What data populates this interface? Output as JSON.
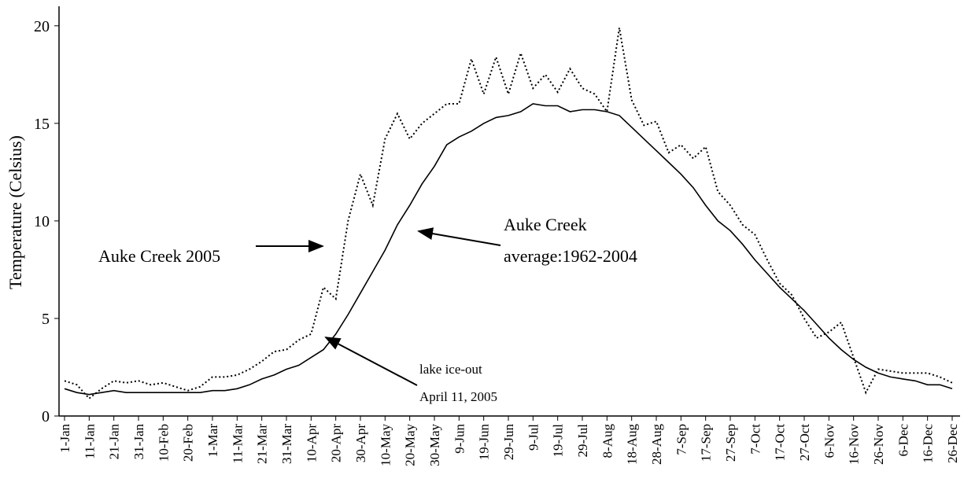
{
  "chart_data": {
    "type": "line",
    "y_label": "Temperature (Celsius)",
    "annotations": [
      "Auke Creek 2005",
      "Auke Creek",
      "average:1962-2004",
      "lake ice-out",
      "April 11, 2005"
    ],
    "categories": [
      "1-Jan",
      null,
      "11-Jan",
      null,
      "21-Jan",
      null,
      "31-Jan",
      null,
      "10-Feb",
      null,
      "20-Feb",
      null,
      "1-Mar",
      null,
      "11-Mar",
      null,
      "21-Mar",
      null,
      "31-Mar",
      null,
      "10-Apr",
      null,
      "20-Apr",
      null,
      "30-Apr",
      null,
      "10-May",
      null,
      "20-May",
      null,
      "30-May",
      null,
      "9-Jun",
      null,
      "19-Jun",
      null,
      "29-Jun",
      null,
      "9-Jul",
      null,
      "19-Jul",
      null,
      "29-Jul",
      null,
      "8-Aug",
      null,
      "18-Aug",
      null,
      "28-Aug",
      null,
      "7-Sep",
      null,
      "17-Sep",
      null,
      "27-Sep",
      null,
      "7-Oct",
      null,
      "17-Oct",
      null,
      "27-Oct",
      null,
      "6-Nov",
      null,
      "16-Nov",
      null,
      "26-Nov",
      null,
      "6-Dec",
      null,
      "16-Dec",
      null,
      "26-Dec"
    ],
    "series": [
      {
        "style": "dotted",
        "color": "#000000",
        "values": [
          1.8,
          1.6,
          0.9,
          1.4,
          1.8,
          1.7,
          1.8,
          1.6,
          1.7,
          1.5,
          1.3,
          1.5,
          2.0,
          2.0,
          2.1,
          2.4,
          2.8,
          3.3,
          3.4,
          3.9,
          4.2,
          6.6,
          6.0,
          10.0,
          12.4,
          10.8,
          14.2,
          15.5,
          14.2,
          15.0,
          15.5,
          16.0,
          16.0,
          18.3,
          16.5,
          18.4,
          16.5,
          18.6,
          16.8,
          17.5,
          16.6,
          17.8,
          16.8,
          16.5,
          15.6,
          19.9,
          16.2,
          14.9,
          15.1,
          13.5,
          13.9,
          13.2,
          13.8,
          11.5,
          10.8,
          9.8,
          9.3,
          8.0,
          6.8,
          6.2,
          5.0,
          4.0,
          4.3,
          4.8,
          3.0,
          1.2,
          2.4,
          2.3,
          2.2,
          2.2,
          2.2,
          2.0,
          1.7
        ]
      },
      {
        "style": "solid",
        "color": "#000000",
        "values": [
          1.4,
          1.2,
          1.1,
          1.2,
          1.3,
          1.2,
          1.2,
          1.2,
          1.2,
          1.2,
          1.2,
          1.2,
          1.3,
          1.3,
          1.4,
          1.6,
          1.9,
          2.1,
          2.4,
          2.6,
          3.0,
          3.4,
          4.2,
          5.2,
          6.3,
          7.4,
          8.5,
          9.8,
          10.8,
          11.9,
          12.8,
          13.9,
          14.3,
          14.6,
          15.0,
          15.3,
          15.4,
          15.6,
          16.0,
          15.9,
          15.9,
          15.6,
          15.7,
          15.7,
          15.6,
          15.4,
          14.8,
          14.2,
          13.6,
          13.0,
          12.4,
          11.7,
          10.8,
          10.0,
          9.5,
          8.8,
          8.0,
          7.3,
          6.6,
          6.0,
          5.4,
          4.7,
          4.0,
          3.4,
          2.9,
          2.5,
          2.2,
          2.0,
          1.9,
          1.8,
          1.6,
          1.6,
          1.4
        ]
      }
    ],
    "ylim": [
      0,
      21
    ],
    "yticks": [
      0,
      5,
      10,
      15,
      20
    ],
    "grid": false
  }
}
